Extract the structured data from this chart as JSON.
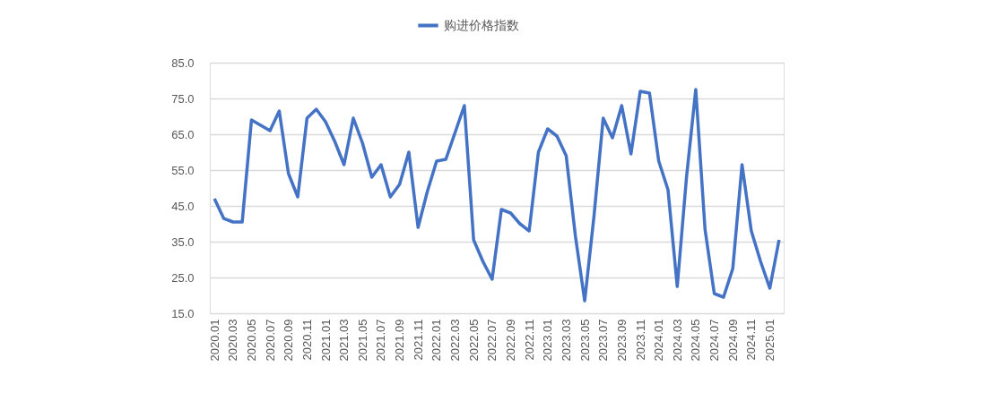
{
  "chart_data": {
    "type": "line",
    "categories": [
      "2020.01",
      null,
      "2020.03",
      null,
      "2020.05",
      null,
      "2020.07",
      null,
      "2020.09",
      null,
      "2020.11",
      null,
      "2021.01",
      null,
      "2021.03",
      null,
      "2021.05",
      null,
      "2021.07",
      null,
      "2021.09",
      null,
      "2021.11",
      null,
      "2022.01",
      null,
      "2022.03",
      null,
      "2022.05",
      null,
      "2022.07",
      null,
      "2022.09",
      null,
      "2022.11",
      null,
      "2023.01",
      null,
      "2023.03",
      null,
      "2023.05",
      null,
      "2023.07",
      null,
      "2023.09",
      null,
      "2023.11",
      null,
      "2024.01",
      null,
      "2024.03",
      null,
      "2024.05",
      null,
      "2024.07",
      null,
      "2024.09",
      null,
      "2024.11",
      null,
      "2025.01",
      null
    ],
    "series": [
      {
        "name": "购进价格指数",
        "color": "#4472c4",
        "values": [
          47,
          41.5,
          40.5,
          40.5,
          69,
          67.5,
          66,
          71.5,
          54,
          47.5,
          69.5,
          72,
          68.5,
          63,
          56.5,
          69.5,
          62.5,
          53,
          56.5,
          47.5,
          51,
          60,
          39,
          49,
          57.5,
          58,
          65.5,
          73,
          35.5,
          29.5,
          24.5,
          44,
          43,
          40,
          38,
          60,
          66.5,
          64.5,
          59,
          36.5,
          18.5,
          42,
          69.5,
          64,
          73,
          59.5,
          77,
          76.5,
          57.5,
          49.5,
          22.5,
          53,
          77.5,
          38.5,
          20.5,
          19.5,
          27.5,
          56.5,
          38,
          29.5,
          22,
          35.5
        ]
      }
    ],
    "ylim": [
      15,
      85
    ],
    "yticks": [
      {
        "value": 15,
        "label": "15.0"
      },
      {
        "value": 25,
        "label": "25.0"
      },
      {
        "value": 35,
        "label": "35.0"
      },
      {
        "value": 45,
        "label": "45.0"
      },
      {
        "value": 55,
        "label": "55.0"
      },
      {
        "value": 65,
        "label": "65.0"
      },
      {
        "value": 75,
        "label": "75.0"
      },
      {
        "value": 85,
        "label": "85.0"
      }
    ],
    "grid": "y",
    "legend": "top",
    "marker": "none",
    "line_style": "solid"
  }
}
